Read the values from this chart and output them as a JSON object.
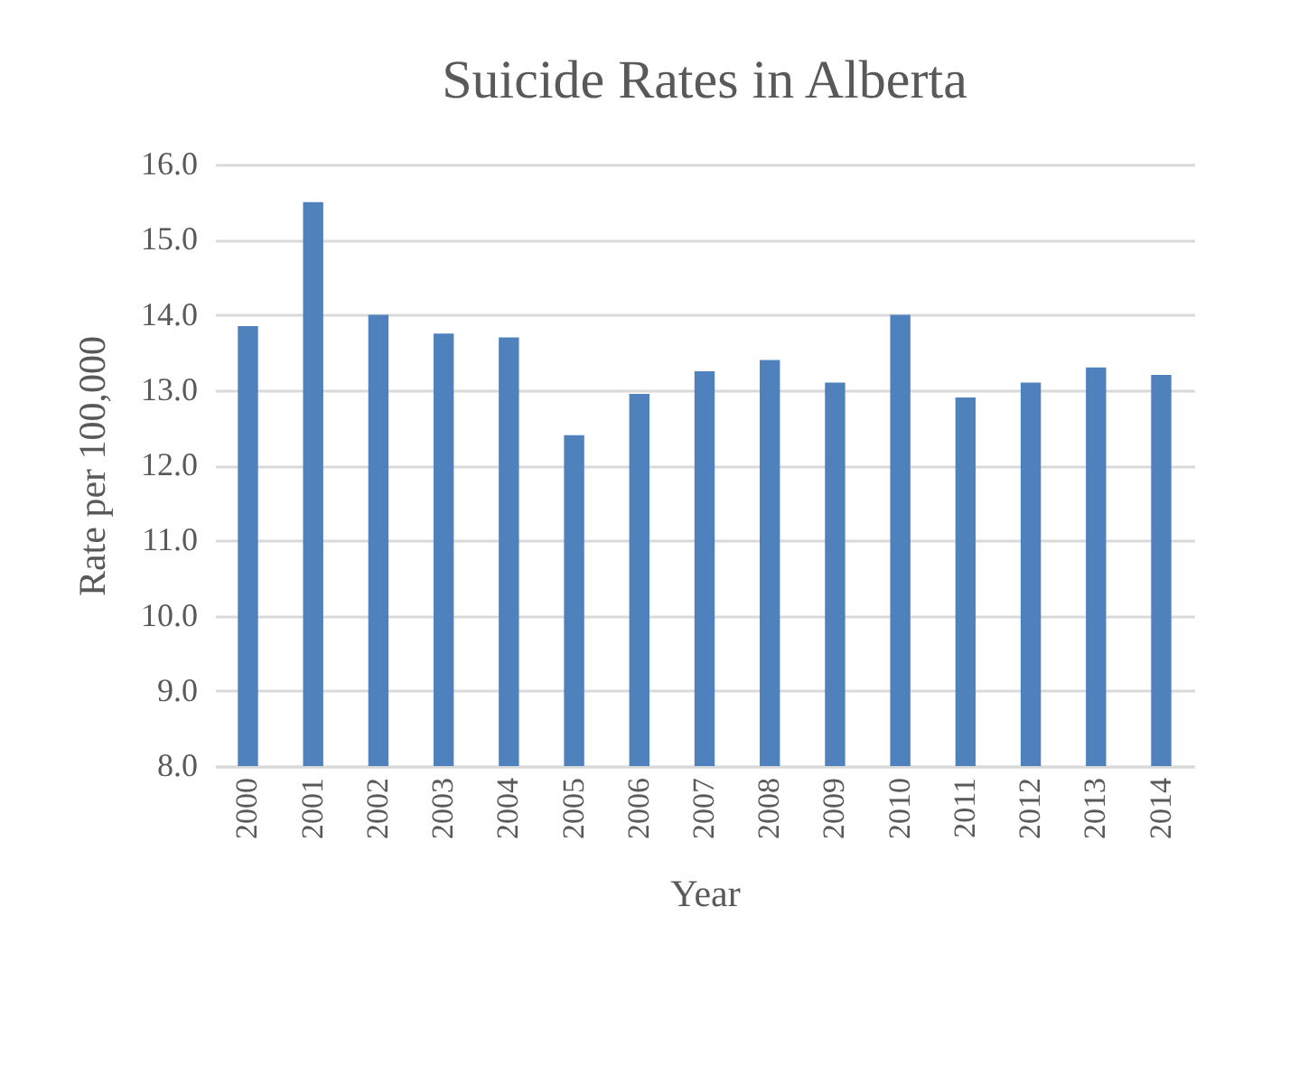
{
  "chart_data": {
    "type": "bar",
    "title": "Suicide Rates in Alberta",
    "xlabel": "Year",
    "ylabel": "Rate per 100,000",
    "categories": [
      "2000",
      "2001",
      "2002",
      "2003",
      "2004",
      "2005",
      "2006",
      "2007",
      "2008",
      "2009",
      "2010",
      "2011",
      "2012",
      "2013",
      "2014"
    ],
    "values": [
      13.85,
      15.5,
      14.0,
      13.75,
      13.7,
      12.4,
      12.95,
      13.25,
      13.4,
      13.1,
      14.0,
      12.9,
      13.1,
      13.3,
      13.2
    ],
    "color": "#4f81bd",
    "ylim": [
      8,
      16
    ],
    "yticks": [
      {
        "value": 8,
        "label": "8.0"
      },
      {
        "value": 9,
        "label": "9.0"
      },
      {
        "value": 10,
        "label": "10.0"
      },
      {
        "value": 11,
        "label": "11.0"
      },
      {
        "value": 12,
        "label": "12.0"
      },
      {
        "value": 13,
        "label": "13.0"
      },
      {
        "value": 14,
        "label": "14.0"
      },
      {
        "value": 15,
        "label": "15.0"
      },
      {
        "value": 16,
        "label": "16.0"
      }
    ],
    "grid": "y"
  }
}
